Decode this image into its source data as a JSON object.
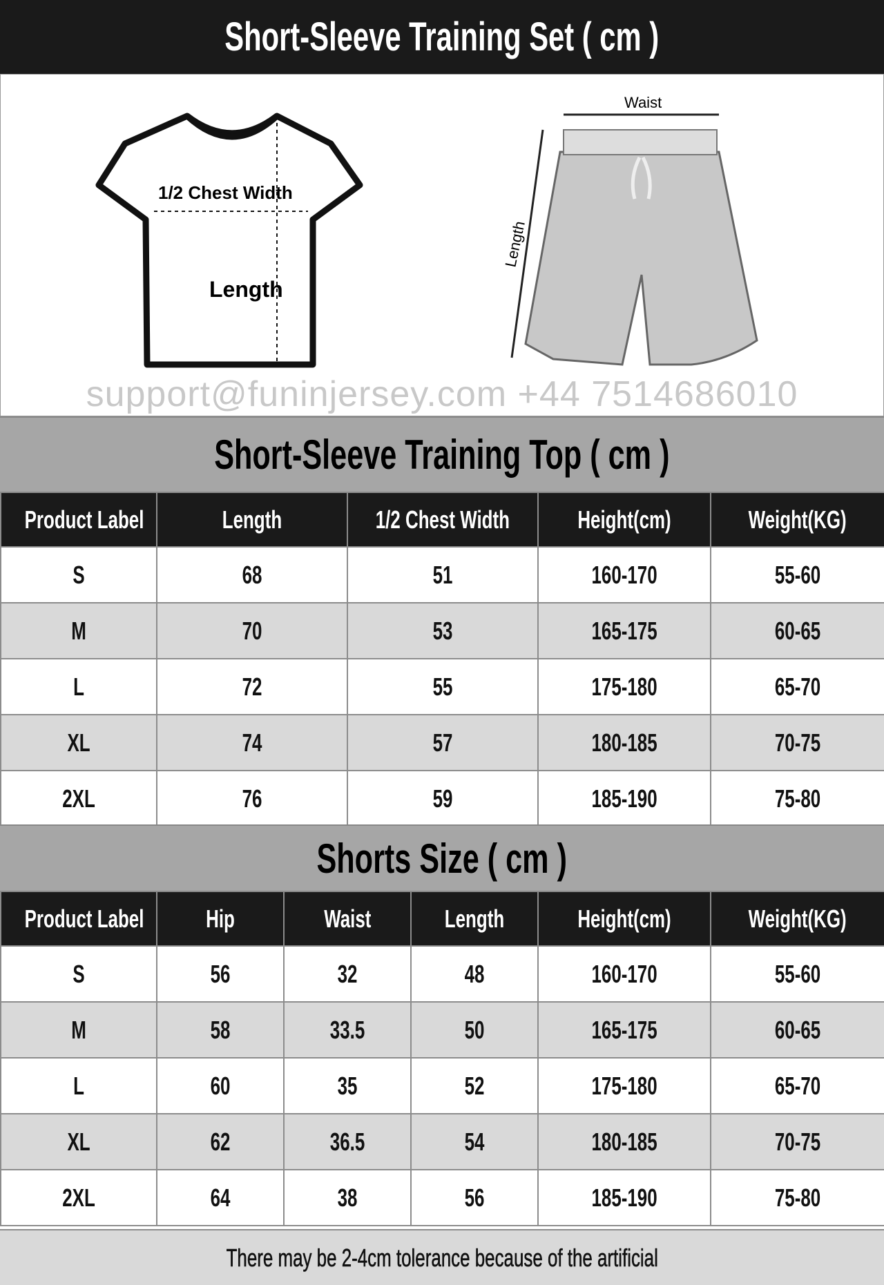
{
  "title": "Short-Sleeve Training Set ( cm )",
  "illustration": {
    "shirt_chest_label": "1/2 Chest Width",
    "shirt_length_label": "Length",
    "shorts_waist_label": "Waist",
    "shorts_length_label": "Length"
  },
  "top": {
    "title": "Short-Sleeve Training Top ( cm )",
    "headers": [
      "Product Label",
      "Length",
      "1/2 Chest Width",
      "Height(cm)",
      "Weight(KG)"
    ],
    "rows": [
      [
        "S",
        "68",
        "51",
        "160-170",
        "55-60"
      ],
      [
        "M",
        "70",
        "53",
        "165-175",
        "60-65"
      ],
      [
        "L",
        "72",
        "55",
        "175-180",
        "65-70"
      ],
      [
        "XL",
        "74",
        "57",
        "180-185",
        "70-75"
      ],
      [
        "2XL",
        "76",
        "59",
        "185-190",
        "75-80"
      ]
    ]
  },
  "shorts": {
    "title": "Shorts Size ( cm )",
    "headers": [
      "Product Label",
      "Hip",
      "Waist",
      "Length",
      "Height(cm)",
      "Weight(KG)"
    ],
    "rows": [
      [
        "S",
        "56",
        "32",
        "48",
        "160-170",
        "55-60"
      ],
      [
        "M",
        "58",
        "33.5",
        "50",
        "165-175",
        "60-65"
      ],
      [
        "L",
        "60",
        "35",
        "52",
        "175-180",
        "65-70"
      ],
      [
        "XL",
        "62",
        "36.5",
        "54",
        "180-185",
        "70-75"
      ],
      [
        "2XL",
        "64",
        "38",
        "56",
        "185-190",
        "75-80"
      ]
    ]
  },
  "footer": "There may be 2-4cm tolerance because of the artificial",
  "watermark": "support@funinjersey.com   +44 7514686010"
}
